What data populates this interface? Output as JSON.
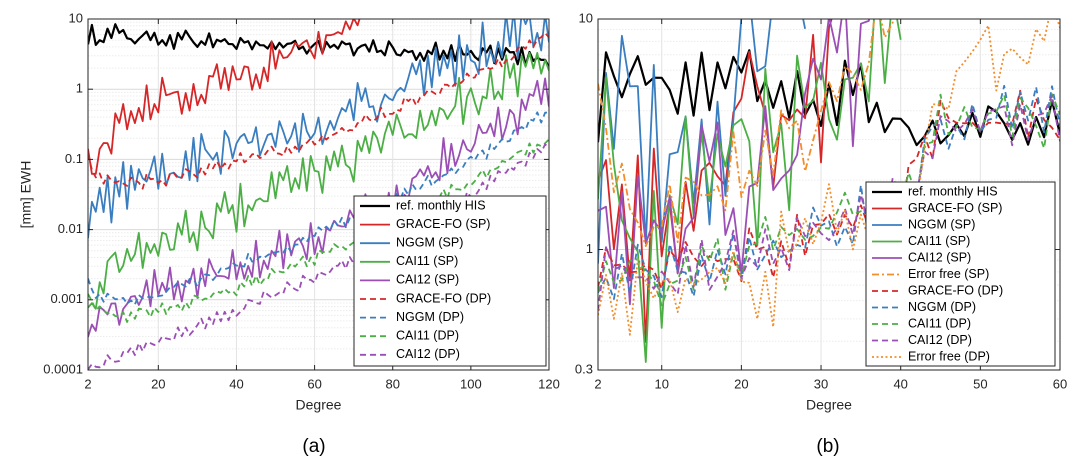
{
  "colors": {
    "ref": "#000000",
    "grace": "#d62728",
    "nggm": "#3a7ec0",
    "cai11": "#4caf45",
    "cai12": "#9b4fb5",
    "errfree": "#f28e2b"
  },
  "chart_data": [
    {
      "type": "line",
      "panel_label": "(a)",
      "xlabel": "Degree",
      "ylabel": "[mm] EWH",
      "xlim": [
        2,
        120
      ],
      "ylim": [
        0.0001,
        10
      ],
      "yscale": "log",
      "grid": true,
      "legend_placement": "bottom-right",
      "xticks": [
        "2",
        "20",
        "40",
        "60",
        "80",
        "100",
        "120"
      ],
      "yticks": [
        "0.0001",
        "0.001",
        "0.01",
        "0.1",
        "1",
        "10"
      ],
      "series": [
        {
          "name": "ref. monthly HIS",
          "color_key": "ref",
          "dash": "solid",
          "x": [
            2,
            3,
            5,
            8,
            10,
            15,
            20,
            30,
            40,
            50,
            60,
            70,
            80,
            90,
            100,
            110,
            120
          ],
          "y": [
            4.5,
            6.0,
            5.5,
            7.0,
            6.0,
            5.5,
            5.3,
            5.0,
            4.5,
            4.2,
            4.0,
            3.8,
            3.6,
            3.4,
            3.2,
            3.1,
            2.8
          ],
          "noise": 0.1
        },
        {
          "name": "GRACE-FO (SP)",
          "color_key": "grace",
          "dash": "solid",
          "x": [
            2,
            3,
            5,
            10,
            20,
            30,
            40,
            50,
            60,
            70,
            73
          ],
          "y": [
            0.15,
            0.06,
            0.12,
            0.35,
            0.7,
            1.0,
            1.6,
            2.5,
            4.5,
            9.0,
            11.0
          ],
          "noise": 0.22
        },
        {
          "name": "NGGM (SP)",
          "color_key": "nggm",
          "dash": "solid",
          "x": [
            2,
            3,
            5,
            10,
            20,
            30,
            40,
            50,
            60,
            70,
            80,
            90,
            100,
            110,
            120
          ],
          "y": [
            0.008,
            0.015,
            0.02,
            0.04,
            0.06,
            0.1,
            0.15,
            0.2,
            0.3,
            0.5,
            0.9,
            1.5,
            3.0,
            6.0,
            9.0
          ],
          "noise": 0.28
        },
        {
          "name": "CAI11 (SP)",
          "color_key": "cai11",
          "dash": "solid",
          "x": [
            2,
            3,
            5,
            10,
            20,
            30,
            40,
            50,
            60,
            70,
            80,
            90,
            100,
            110,
            120
          ],
          "y": [
            0.0008,
            0.0012,
            0.002,
            0.004,
            0.006,
            0.01,
            0.02,
            0.035,
            0.06,
            0.1,
            0.2,
            0.4,
            0.8,
            1.5,
            3.0
          ],
          "noise": 0.25
        },
        {
          "name": "CAI12 (SP)",
          "color_key": "cai12",
          "dash": "solid",
          "x": [
            2,
            3,
            5,
            10,
            20,
            30,
            40,
            50,
            60,
            70,
            80,
            90,
            100,
            110,
            120
          ],
          "y": [
            0.0003,
            0.0004,
            0.0006,
            0.0008,
            0.0015,
            0.002,
            0.003,
            0.005,
            0.008,
            0.015,
            0.03,
            0.08,
            0.2,
            0.4,
            0.8
          ],
          "noise": 0.22
        },
        {
          "name": "GRACE-FO (DP)",
          "color_key": "grace",
          "dash": "dash",
          "x": [
            2,
            3,
            5,
            10,
            20,
            30,
            40,
            50,
            60,
            70,
            80,
            90,
            100,
            110,
            120
          ],
          "y": [
            0.12,
            0.06,
            0.05,
            0.045,
            0.05,
            0.07,
            0.1,
            0.13,
            0.18,
            0.3,
            0.5,
            0.9,
            1.5,
            3.0,
            6.0
          ],
          "noise": 0.08
        },
        {
          "name": "NGGM (DP)",
          "color_key": "nggm",
          "dash": "dash",
          "x": [
            2,
            3,
            5,
            10,
            20,
            30,
            40,
            50,
            60,
            70,
            80,
            90,
            100,
            110,
            120
          ],
          "y": [
            0.002,
            0.0015,
            0.0012,
            0.001,
            0.0012,
            0.002,
            0.003,
            0.005,
            0.008,
            0.014,
            0.025,
            0.05,
            0.1,
            0.2,
            0.5
          ],
          "noise": 0.08
        },
        {
          "name": "CAI11 (DP)",
          "color_key": "cai11",
          "dash": "dash",
          "x": [
            2,
            3,
            5,
            10,
            20,
            30,
            40,
            50,
            60,
            70,
            80,
            90,
            100,
            110,
            120
          ],
          "y": [
            0.0012,
            0.0009,
            0.0007,
            0.0006,
            0.0007,
            0.001,
            0.0015,
            0.0025,
            0.004,
            0.007,
            0.012,
            0.025,
            0.05,
            0.1,
            0.2
          ],
          "noise": 0.08
        },
        {
          "name": "CAI12 (DP)",
          "color_key": "cai12",
          "dash": "dash",
          "x": [
            2,
            3,
            5,
            10,
            20,
            30,
            40,
            50,
            60,
            70,
            80,
            90,
            100,
            110,
            120
          ],
          "y": [
            0.0001,
            0.0001,
            0.00012,
            0.00015,
            0.00025,
            0.0004,
            0.0007,
            0.0012,
            0.002,
            0.004,
            0.007,
            0.015,
            0.03,
            0.07,
            0.15
          ],
          "noise": 0.08
        }
      ]
    },
    {
      "type": "line",
      "panel_label": "(b)",
      "xlabel": "Degree",
      "ylabel": "",
      "xlim": [
        2,
        60
      ],
      "ylim": [
        0.3,
        10
      ],
      "yscale": "log",
      "grid": true,
      "legend_placement": "bottom-right",
      "xticks": [
        "2",
        "10",
        "20",
        "30",
        "40",
        "50",
        "60"
      ],
      "yticks": [
        "0.3",
        "1",
        "10"
      ],
      "series": [
        {
          "name": "ref. monthly HIS",
          "color_key": "ref",
          "dash": "solid",
          "x": [
            2,
            3,
            5,
            7,
            10,
            12,
            15,
            18,
            20,
            25,
            30,
            35,
            40,
            45,
            50,
            55,
            60
          ],
          "y": [
            4.0,
            6.0,
            5.0,
            7.0,
            6.0,
            4.8,
            5.2,
            5.0,
            5.5,
            5.0,
            4.6,
            5.0,
            3.6,
            3.2,
            3.7,
            3.5,
            3.6
          ],
          "noise": 0.1
        },
        {
          "name": "GRACE-FO (SP)",
          "color_key": "grace",
          "dash": "solid",
          "x": [
            2,
            3,
            5,
            8,
            10,
            12,
            15,
            18,
            20,
            25,
            30,
            32
          ],
          "y": [
            5.0,
            3.5,
            1.5,
            0.9,
            1.5,
            2.0,
            2.5,
            3.0,
            3.5,
            5.0,
            6.0,
            11.0
          ],
          "noise": 0.3
        },
        {
          "name": "NGGM (SP)",
          "color_key": "nggm",
          "dash": "solid",
          "x": [
            2,
            3,
            5,
            8,
            10,
            12,
            15,
            18,
            20,
            22,
            24,
            26,
            28
          ],
          "y": [
            2.5,
            5.0,
            3.5,
            3.0,
            2.5,
            2.2,
            3.0,
            5.0,
            7.0,
            9.0,
            10.0,
            10.5,
            11.0
          ],
          "noise": 0.35
        },
        {
          "name": "CAI11 (SP)",
          "color_key": "cai11",
          "dash": "solid",
          "x": [
            2,
            3,
            5,
            8,
            10,
            15,
            20,
            25,
            30,
            35,
            40
          ],
          "y": [
            4.0,
            3.0,
            1.5,
            0.85,
            1.2,
            2.0,
            2.5,
            3.0,
            4.5,
            8.0,
            11.0
          ],
          "noise": 0.3
        },
        {
          "name": "CAI12 (SP)",
          "color_key": "cai12",
          "dash": "solid",
          "x": [
            2,
            3,
            5,
            8,
            10,
            15,
            20,
            25,
            30,
            35,
            40
          ],
          "y": [
            3.5,
            2.0,
            1.2,
            0.75,
            1.0,
            1.6,
            2.0,
            2.8,
            4.0,
            6.5,
            11.0
          ],
          "noise": 0.3
        },
        {
          "name": "Error free (SP)",
          "color_key": "errfree",
          "dash": "dashdot",
          "x": [
            2,
            3,
            5,
            8,
            10,
            15,
            20,
            25,
            30,
            35,
            40
          ],
          "y": [
            8.0,
            3.0,
            1.5,
            0.9,
            1.3,
            2.0,
            2.6,
            3.0,
            3.5,
            6.0,
            11.0
          ],
          "noise": 0.15
        },
        {
          "name": "GRACE-FO (DP)",
          "color_key": "grace",
          "dash": "dash",
          "x": [
            2,
            3,
            5,
            8,
            10,
            15,
            20,
            25,
            30,
            35,
            40,
            45,
            50,
            55,
            60
          ],
          "y": [
            0.9,
            0.8,
            0.85,
            0.8,
            0.75,
            0.85,
            0.95,
            1.05,
            1.2,
            1.45,
            1.6,
            3.8,
            3.7,
            3.8,
            3.7
          ],
          "noise": 0.1
        },
        {
          "name": "NGGM (DP)",
          "color_key": "nggm",
          "dash": "dash",
          "x": [
            2,
            3,
            5,
            8,
            10,
            15,
            20,
            25,
            30,
            35,
            40,
            45,
            50,
            55,
            60
          ],
          "y": [
            0.85,
            0.8,
            0.8,
            0.78,
            0.75,
            0.85,
            0.95,
            1.05,
            1.2,
            1.45,
            1.6,
            3.8,
            3.6,
            3.9,
            3.7
          ],
          "noise": 0.1
        },
        {
          "name": "CAI11 (DP)",
          "color_key": "cai11",
          "dash": "dash",
          "x": [
            2,
            3,
            5,
            8,
            10,
            15,
            20,
            25,
            30,
            35,
            40,
            45,
            50,
            55,
            60
          ],
          "y": [
            0.85,
            0.8,
            0.82,
            0.78,
            0.75,
            0.85,
            0.95,
            1.05,
            1.2,
            1.45,
            1.6,
            3.7,
            3.7,
            3.8,
            3.6
          ],
          "noise": 0.1
        },
        {
          "name": "CAI12 (DP)",
          "color_key": "cai12",
          "dash": "dash",
          "x": [
            2,
            3,
            5,
            8,
            10,
            15,
            20,
            25,
            30,
            35,
            40,
            45,
            50,
            55,
            60
          ],
          "y": [
            0.7,
            0.78,
            0.8,
            0.76,
            0.72,
            0.82,
            0.92,
            1.0,
            1.15,
            1.4,
            1.55,
            3.6,
            3.6,
            3.7,
            3.8
          ],
          "noise": 0.1
        },
        {
          "name": "Error free (DP)",
          "color_key": "errfree",
          "dash": "dot",
          "x": [
            2,
            3,
            5,
            6,
            8,
            10,
            15,
            20,
            24,
            25,
            30,
            35,
            40,
            42,
            45,
            48,
            50,
            52,
            55,
            58,
            60
          ],
          "y": [
            0.7,
            0.8,
            0.6,
            0.55,
            0.75,
            0.7,
            0.8,
            0.9,
            0.6,
            1.0,
            1.3,
            1.5,
            1.6,
            2.0,
            5.0,
            8.0,
            9.0,
            7.0,
            6.0,
            9.0,
            10.5
          ],
          "noise": 0.12
        }
      ]
    }
  ]
}
